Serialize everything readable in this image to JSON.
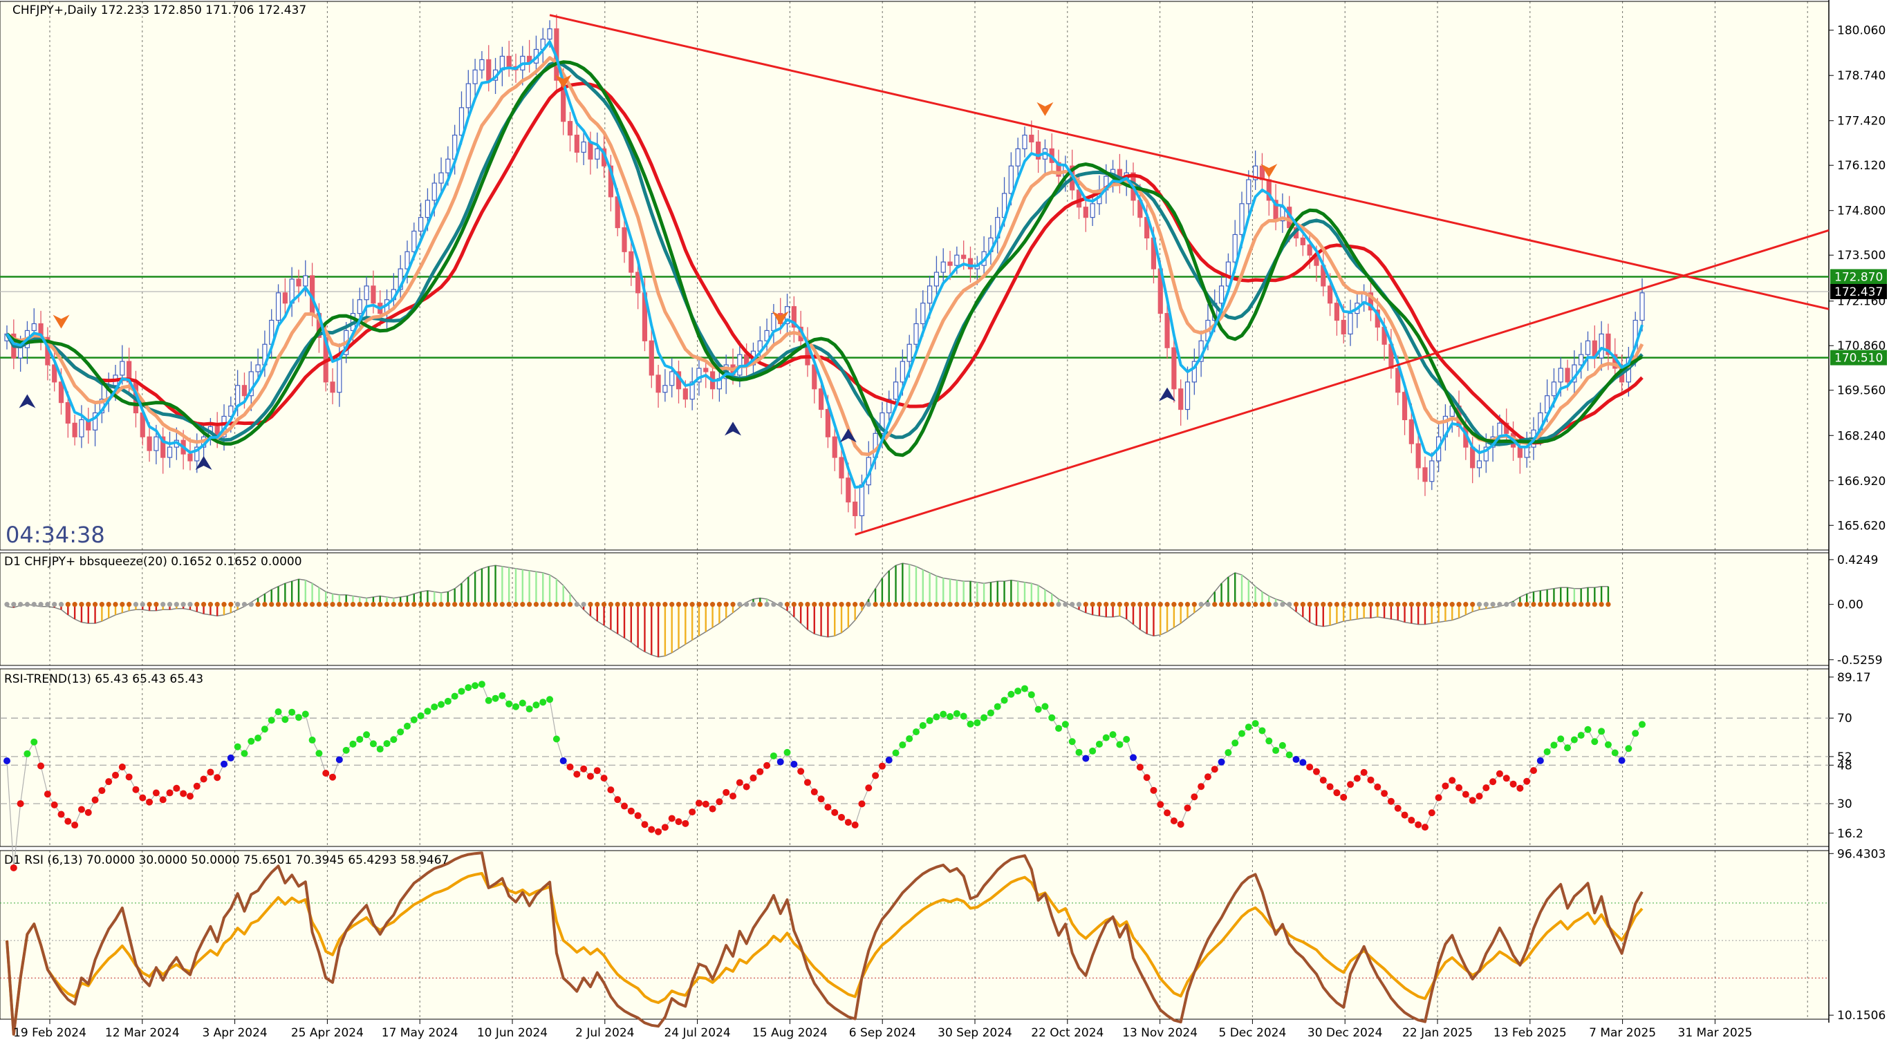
{
  "colors": {
    "background": "#fffff0",
    "grid": "#000000",
    "fast_ma": "#18b4f0",
    "green_ma": "#0a7d12",
    "salmon_ma": "#f4a070",
    "teal_ma": "#16808a",
    "red_ma": "#e4141c",
    "trendline": "#ec2020",
    "hline": "#1a8c1a",
    "bull_candle": "#3f5fbf",
    "bear_candle": "#e55a6a",
    "squeeze_pos": "#22c022",
    "squeeze_neg": "#d41c1c",
    "squeeze_neg_light": "#f0b020",
    "rsi_green": "#20e020",
    "rsi_red": "#e81010",
    "rsi_blue": "#1010e0",
    "rsi_fast": "#a0522d",
    "rsi_slow": "#f0a000"
  },
  "chart_data": [
    {
      "type": "candlestick",
      "title": "CHFJPY+,Daily  172.233 172.850 171.706 172.437",
      "countdown": "04:34:38",
      "ylim": [
        164.9,
        180.9
      ],
      "y_tick_labels": [
        "180.060",
        "178.740",
        "177.420",
        "176.120",
        "174.800",
        "173.500",
        "172.160",
        "170.860",
        "169.560",
        "168.240",
        "166.920",
        "165.620"
      ],
      "x_tick_labels": [
        "19 Feb 2024",
        "12 Mar 2024",
        "3 Apr 2024",
        "25 Apr 2024",
        "17 May 2024",
        "10 Jun 2024",
        "2 Jul 2024",
        "24 Jul 2024",
        "15 Aug 2024",
        "6 Sep 2024",
        "30 Sep 2024",
        "22 Oct 2024",
        "13 Nov 2024",
        "5 Dec 2024",
        "30 Dec 2024",
        "22 Jan 2025",
        "13 Feb 2025",
        "7 Mar 2025",
        "31 Mar 2025"
      ],
      "hlines": [
        {
          "value": 172.87,
          "label": "172.870"
        },
        {
          "value": 170.51,
          "label": "170.510"
        }
      ],
      "current_price": {
        "value": 172.437,
        "label": "172.437"
      },
      "closes": [
        171.2,
        170.5,
        170.8,
        171.3,
        171.5,
        171.1,
        170.3,
        169.8,
        169.2,
        168.6,
        168.2,
        168.7,
        168.4,
        168.9,
        169.3,
        169.7,
        170.0,
        170.4,
        169.8,
        168.9,
        168.2,
        167.8,
        168.2,
        167.6,
        167.9,
        168.1,
        167.7,
        167.5,
        167.9,
        168.2,
        168.5,
        168.2,
        168.8,
        169.1,
        169.7,
        169.4,
        170.1,
        170.3,
        170.9,
        171.6,
        172.4,
        172.1,
        172.8,
        172.6,
        172.9,
        171.8,
        171.1,
        169.8,
        169.5,
        170.6,
        171.3,
        171.8,
        172.2,
        172.6,
        172.1,
        171.8,
        172.2,
        172.5,
        173.1,
        173.6,
        174.2,
        174.6,
        175.1,
        175.6,
        175.9,
        176.3,
        177.0,
        177.8,
        178.5,
        178.9,
        179.2,
        178.6,
        178.9,
        179.3,
        179.0,
        178.9,
        179.3,
        179.1,
        179.5,
        179.8,
        180.1,
        178.6,
        177.4,
        177.0,
        176.5,
        176.8,
        176.3,
        176.6,
        176.1,
        175.2,
        174.3,
        173.6,
        173.0,
        172.4,
        171.0,
        170.0,
        169.5,
        169.7,
        170.1,
        169.6,
        169.3,
        169.8,
        170.2,
        170.1,
        169.6,
        169.9,
        170.3,
        170.0,
        170.6,
        170.3,
        170.7,
        171.0,
        171.3,
        171.8,
        171.5,
        172.0,
        171.4,
        171.0,
        170.3,
        169.6,
        169.0,
        168.2,
        167.6,
        167.0,
        166.3,
        165.9,
        166.8,
        167.6,
        168.3,
        168.9,
        169.3,
        169.8,
        170.4,
        170.9,
        171.5,
        172.1,
        172.6,
        173.0,
        173.3,
        173.2,
        173.5,
        173.4,
        173.1,
        173.2,
        173.6,
        174.0,
        174.6,
        175.3,
        176.1,
        176.6,
        177.0,
        176.8,
        176.3,
        176.6,
        176.2,
        175.8,
        176.1,
        175.4,
        174.9,
        174.6,
        175.0,
        175.4,
        175.8,
        176.0,
        175.6,
        175.9,
        175.1,
        174.6,
        174.0,
        173.1,
        171.8,
        170.8,
        169.6,
        169.0,
        169.8,
        170.4,
        171.0,
        171.6,
        172.1,
        172.6,
        173.3,
        174.1,
        175.0,
        175.7,
        176.1,
        175.7,
        175.1,
        174.5,
        174.9,
        174.3,
        174.0,
        173.8,
        173.5,
        173.2,
        172.6,
        172.1,
        171.6,
        171.2,
        171.8,
        172.1,
        172.4,
        171.9,
        171.4,
        170.9,
        170.2,
        169.5,
        168.7,
        168.0,
        167.3,
        166.9,
        167.5,
        168.2,
        168.8,
        169.1,
        168.5,
        167.9,
        167.3,
        167.5,
        167.9,
        168.2,
        168.6,
        168.3,
        167.9,
        167.6,
        167.9,
        168.4,
        168.9,
        169.4,
        169.8,
        170.2,
        169.8,
        170.3,
        170.6,
        171.0,
        170.5,
        171.2,
        170.6,
        170.2,
        169.8,
        170.5,
        171.6,
        172.4
      ]
    },
    {
      "type": "histogram",
      "title": "D1 CHFJPY+ bbsqueeze(20) 0.1652 0.1652 0.0000",
      "ylim": [
        -0.58,
        0.49
      ],
      "y_tick_labels": [
        "0.4249",
        "0.00",
        "-0.5259"
      ],
      "values": [
        -0.02,
        -0.03,
        -0.01,
        0.0,
        -0.01,
        -0.02,
        -0.02,
        -0.03,
        -0.05,
        -0.1,
        -0.14,
        -0.17,
        -0.18,
        -0.18,
        -0.16,
        -0.13,
        -0.1,
        -0.08,
        -0.06,
        -0.05,
        -0.05,
        -0.06,
        -0.06,
        -0.05,
        -0.05,
        -0.04,
        -0.04,
        -0.05,
        -0.07,
        -0.09,
        -0.1,
        -0.11,
        -0.1,
        -0.08,
        -0.05,
        -0.02,
        0.02,
        0.06,
        0.1,
        0.14,
        0.17,
        0.2,
        0.22,
        0.24,
        0.23,
        0.2,
        0.16,
        0.12,
        0.1,
        0.09,
        0.09,
        0.08,
        0.07,
        0.06,
        0.07,
        0.08,
        0.07,
        0.06,
        0.07,
        0.08,
        0.1,
        0.12,
        0.13,
        0.12,
        0.11,
        0.12,
        0.15,
        0.2,
        0.26,
        0.31,
        0.34,
        0.36,
        0.37,
        0.36,
        0.35,
        0.34,
        0.33,
        0.32,
        0.31,
        0.3,
        0.28,
        0.24,
        0.18,
        0.1,
        0.02,
        -0.05,
        -0.11,
        -0.16,
        -0.2,
        -0.24,
        -0.28,
        -0.32,
        -0.36,
        -0.41,
        -0.45,
        -0.48,
        -0.5,
        -0.49,
        -0.46,
        -0.42,
        -0.38,
        -0.34,
        -0.3,
        -0.26,
        -0.22,
        -0.18,
        -0.13,
        -0.08,
        -0.03,
        0.02,
        0.05,
        0.06,
        0.05,
        0.02,
        -0.02,
        -0.06,
        -0.12,
        -0.18,
        -0.24,
        -0.28,
        -0.3,
        -0.31,
        -0.3,
        -0.27,
        -0.22,
        -0.15,
        -0.06,
        0.05,
        0.15,
        0.25,
        0.32,
        0.37,
        0.39,
        0.38,
        0.36,
        0.33,
        0.3,
        0.27,
        0.25,
        0.24,
        0.23,
        0.22,
        0.22,
        0.21,
        0.2,
        0.21,
        0.22,
        0.22,
        0.23,
        0.22,
        0.21,
        0.2,
        0.18,
        0.14,
        0.1,
        0.05,
        0.02,
        -0.02,
        -0.05,
        -0.08,
        -0.1,
        -0.11,
        -0.12,
        -0.12,
        -0.11,
        -0.14,
        -0.19,
        -0.24,
        -0.28,
        -0.3,
        -0.29,
        -0.26,
        -0.22,
        -0.18,
        -0.13,
        -0.08,
        -0.03,
        0.04,
        0.12,
        0.2,
        0.26,
        0.3,
        0.28,
        0.23,
        0.17,
        0.12,
        0.08,
        0.05,
        0.03,
        -0.02,
        -0.07,
        -0.12,
        -0.17,
        -0.2,
        -0.21,
        -0.2,
        -0.18,
        -0.16,
        -0.15,
        -0.14,
        -0.13,
        -0.13,
        -0.12,
        -0.13,
        -0.14,
        -0.15,
        -0.17,
        -0.18,
        -0.19,
        -0.19,
        -0.18,
        -0.17,
        -0.16,
        -0.15,
        -0.13,
        -0.1,
        -0.07,
        -0.05,
        -0.04,
        -0.03,
        -0.02,
        0.0,
        0.03,
        0.07,
        0.1,
        0.12,
        0.13,
        0.14,
        0.15,
        0.16,
        0.16,
        0.15,
        0.15,
        0.16,
        0.16,
        0.17,
        0.17
      ]
    },
    {
      "type": "scatter",
      "title": "RSI-TREND(13) 65.43 65.43 65.43",
      "ylim": [
        10.0,
        93.0
      ],
      "y_tick_labels": [
        "89.17",
        "70",
        "52",
        "48",
        "30",
        "16.2"
      ],
      "levels": [
        70,
        52,
        48,
        30
      ]
    },
    {
      "type": "line",
      "title": "D1 RSI  (6,13) 70.0000 30.0000 50.0000 75.6501 70.3945 65.4293 58.9467",
      "ylim": [
        8.0,
        98.0
      ],
      "y_tick_labels": [
        "96.4303",
        "10.1506"
      ],
      "levels": [
        70,
        50,
        30
      ],
      "series": [
        {
          "name": "RSI 6"
        },
        {
          "name": "RSI 13"
        }
      ]
    }
  ]
}
